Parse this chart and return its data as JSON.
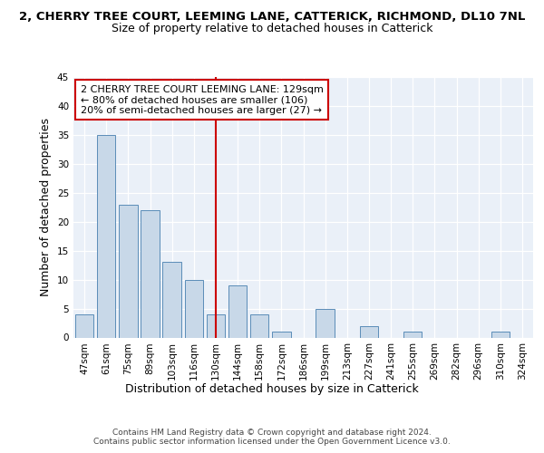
{
  "title_line1": "2, CHERRY TREE COURT, LEEMING LANE, CATTERICK, RICHMOND, DL10 7NL",
  "title_line2": "Size of property relative to detached houses in Catterick",
  "xlabel": "Distribution of detached houses by size in Catterick",
  "ylabel": "Number of detached properties",
  "categories": [
    "47sqm",
    "61sqm",
    "75sqm",
    "89sqm",
    "103sqm",
    "116sqm",
    "130sqm",
    "144sqm",
    "158sqm",
    "172sqm",
    "186sqm",
    "199sqm",
    "213sqm",
    "227sqm",
    "241sqm",
    "255sqm",
    "269sqm",
    "282sqm",
    "296sqm",
    "310sqm",
    "324sqm"
  ],
  "values": [
    4,
    35,
    23,
    22,
    13,
    10,
    4,
    9,
    4,
    1,
    0,
    5,
    0,
    2,
    0,
    1,
    0,
    0,
    0,
    1,
    0
  ],
  "bar_color": "#c8d8e8",
  "bar_edge_color": "#5b8db8",
  "highlight_index": 6,
  "highlight_line_color": "#cc0000",
  "annotation_text": "2 CHERRY TREE COURT LEEMING LANE: 129sqm\n← 80% of detached houses are smaller (106)\n20% of semi-detached houses are larger (27) →",
  "annotation_box_color": "#ffffff",
  "annotation_border_color": "#cc0000",
  "ylim": [
    0,
    45
  ],
  "yticks": [
    0,
    5,
    10,
    15,
    20,
    25,
    30,
    35,
    40,
    45
  ],
  "plot_bg_color": "#eaf0f8",
  "footer_text": "Contains HM Land Registry data © Crown copyright and database right 2024.\nContains public sector information licensed under the Open Government Licence v3.0.",
  "title_fontsize": 9.5,
  "subtitle_fontsize": 9,
  "axis_label_fontsize": 9,
  "tick_fontsize": 7.5,
  "annotation_fontsize": 8,
  "footer_fontsize": 6.5
}
